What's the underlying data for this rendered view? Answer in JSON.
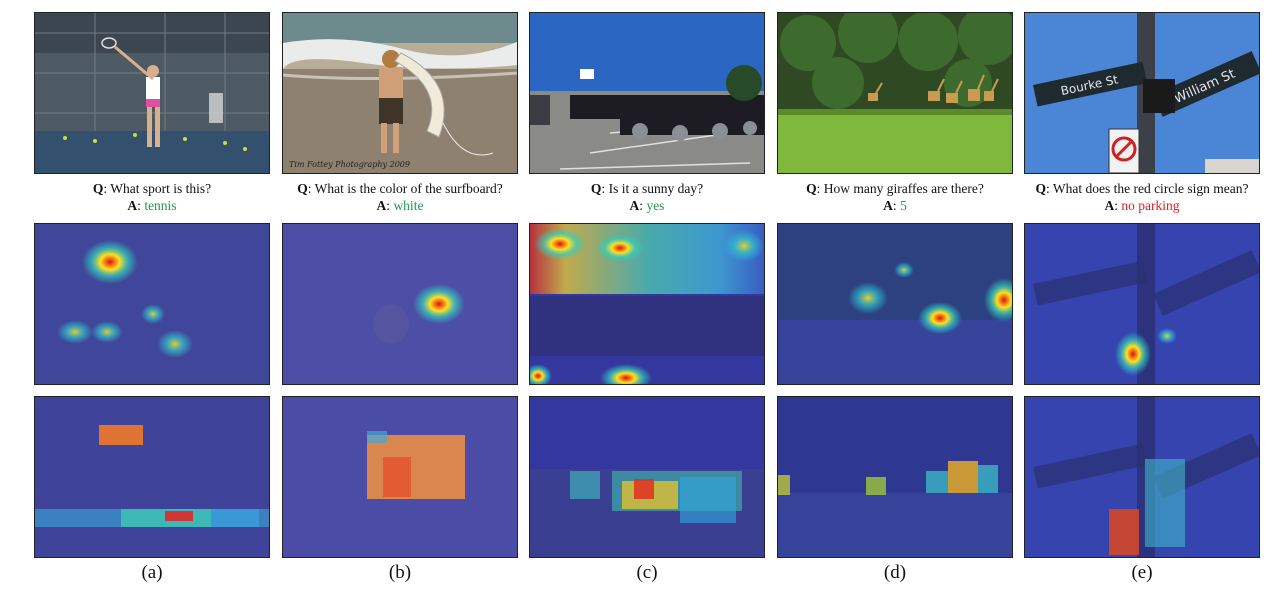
{
  "figure": {
    "columns": [
      {
        "id": "a",
        "label": "(a)",
        "question": "What sport is this?",
        "answer": "tennis",
        "correct": true
      },
      {
        "id": "b",
        "label": "(b)",
        "question": "What is the color of the surfboard?",
        "answer": "white",
        "correct": true
      },
      {
        "id": "c",
        "label": "(c)",
        "question": "Is it a sunny day?",
        "answer": "yes",
        "correct": true
      },
      {
        "id": "d",
        "label": "(d)",
        "question": "How many giraffes are there?",
        "answer": "5",
        "correct": true
      },
      {
        "id": "e",
        "label": "(e)",
        "question": "What does the red circle sign mean?",
        "answer": "no parking",
        "correct": false
      }
    ],
    "q_prefix": "Q",
    "a_prefix": "A",
    "photo_texts": {
      "b": "Tim Fottey Photography 2009",
      "e_sign_left": "Bourke St",
      "e_sign_right": "William St"
    },
    "colors": {
      "correct_answer": "#1f9a4a",
      "wrong_answer": "#e02020",
      "overlay_tint": "#2a2ea8"
    }
  }
}
